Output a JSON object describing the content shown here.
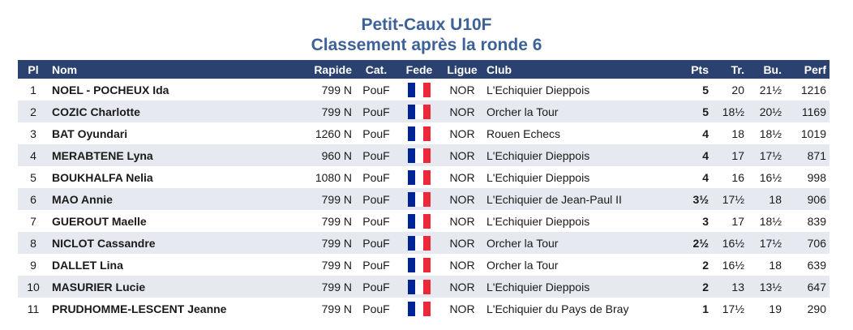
{
  "header": {
    "title": "Petit-Caux U10F",
    "subtitle": "Classement après la ronde 6"
  },
  "colors": {
    "title": "#3d6298",
    "header_bg": "#2b4170",
    "row_alt": "#e6e9f0"
  },
  "table": {
    "columns": [
      "Pl",
      "Nom",
      "Rapide",
      "Cat.",
      "Fede",
      "Ligue",
      "Club",
      "Pts",
      "Tr.",
      "Bu.",
      "Perf"
    ],
    "rows": [
      {
        "pl": "1",
        "nom": "NOEL - POCHEUX Ida",
        "rapide": "799 N",
        "cat": "PouF",
        "fede": "france-flag-icon",
        "ligue": "NOR",
        "club": "L'Echiquier Dieppois",
        "pts": "5",
        "tr": "20",
        "bu": "21½",
        "perf": "1216"
      },
      {
        "pl": "2",
        "nom": "COZIC Charlotte",
        "rapide": "799 N",
        "cat": "PouF",
        "fede": "france-flag-icon",
        "ligue": "NOR",
        "club": "Orcher la Tour",
        "pts": "5",
        "tr": "18½",
        "bu": "20½",
        "perf": "1169"
      },
      {
        "pl": "3",
        "nom": "BAT Oyundari",
        "rapide": "1260 N",
        "cat": "PouF",
        "fede": "france-flag-icon",
        "ligue": "NOR",
        "club": "Rouen Echecs",
        "pts": "4",
        "tr": "18",
        "bu": "18½",
        "perf": "1019"
      },
      {
        "pl": "4",
        "nom": "MERABTENE Lyna",
        "rapide": "960 N",
        "cat": "PouF",
        "fede": "france-flag-icon",
        "ligue": "NOR",
        "club": "L'Echiquier Dieppois",
        "pts": "4",
        "tr": "17",
        "bu": "17½",
        "perf": "871"
      },
      {
        "pl": "5",
        "nom": "BOUKHALFA Nelia",
        "rapide": "1080 N",
        "cat": "PouF",
        "fede": "france-flag-icon",
        "ligue": "NOR",
        "club": "L'Echiquier Dieppois",
        "pts": "4",
        "tr": "16",
        "bu": "16½",
        "perf": "998"
      },
      {
        "pl": "6",
        "nom": "MAO Annie",
        "rapide": "799 N",
        "cat": "PouF",
        "fede": "france-flag-icon",
        "ligue": "NOR",
        "club": "L'Echiquier de Jean-Paul II",
        "pts": "3½",
        "tr": "17½",
        "bu": "18",
        "perf": "906"
      },
      {
        "pl": "7",
        "nom": "GUEROUT Maelle",
        "rapide": "799 N",
        "cat": "PouF",
        "fede": "france-flag-icon",
        "ligue": "NOR",
        "club": "L'Echiquier Dieppois",
        "pts": "3",
        "tr": "17",
        "bu": "18½",
        "perf": "839"
      },
      {
        "pl": "8",
        "nom": "NICLOT Cassandre",
        "rapide": "799 N",
        "cat": "PouF",
        "fede": "france-flag-icon",
        "ligue": "NOR",
        "club": "Orcher la Tour",
        "pts": "2½",
        "tr": "16½",
        "bu": "17½",
        "perf": "706"
      },
      {
        "pl": "9",
        "nom": "DALLET Lina",
        "rapide": "799 N",
        "cat": "PouF",
        "fede": "france-flag-icon",
        "ligue": "NOR",
        "club": "Orcher la Tour",
        "pts": "2",
        "tr": "16½",
        "bu": "18",
        "perf": "639"
      },
      {
        "pl": "10",
        "nom": "MASURIER Lucie",
        "rapide": "799 N",
        "cat": "PouF",
        "fede": "france-flag-icon",
        "ligue": "NOR",
        "club": "L'Echiquier Dieppois",
        "pts": "2",
        "tr": "13",
        "bu": "13½",
        "perf": "647"
      },
      {
        "pl": "11",
        "nom": "PRUDHOMME-LESCENT Jeanne",
        "rapide": "799 N",
        "cat": "PouF",
        "fede": "france-flag-icon",
        "ligue": "NOR",
        "club": "L'Echiquier du Pays de Bray",
        "pts": "1",
        "tr": "17½",
        "bu": "19",
        "perf": "290"
      }
    ]
  }
}
